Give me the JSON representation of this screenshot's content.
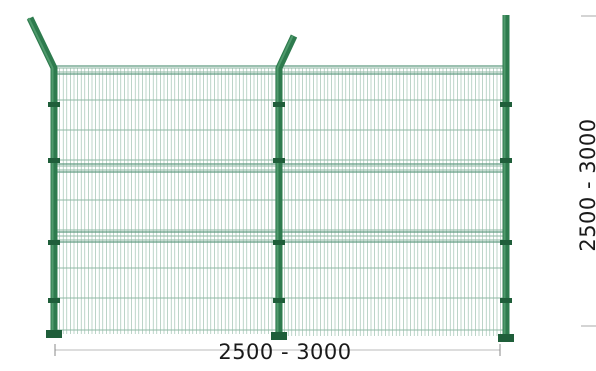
{
  "dimensions": {
    "width_label": "2500 - 3000",
    "height_label": "2500 - 3000"
  },
  "colors": {
    "post": "#2e7b4e",
    "post_dark": "#1f5e3a",
    "mesh": "#8fb8a4",
    "mesh_fold": "#5f9a80",
    "dimension_line": "#888888"
  }
}
